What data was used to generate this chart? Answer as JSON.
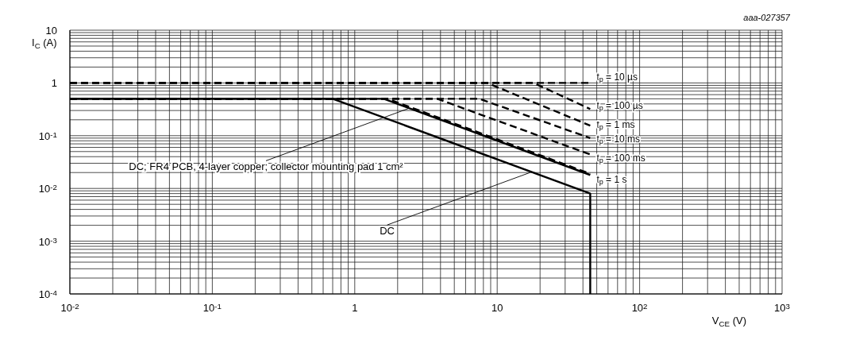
{
  "chart_data": {
    "type": "line",
    "xlabel": "V$_{CE}$ (V)",
    "ylabel": "I$_{C}$ (A)",
    "log": "xy",
    "grid": true,
    "marker": "none",
    "xlim": [
      0.01,
      1000
    ],
    "ylim": [
      0.0001,
      10
    ],
    "xticks": [
      {
        "value": 0.01,
        "label": "10$^{-2}$"
      },
      {
        "value": 0.02,
        "label": null
      },
      {
        "value": 0.03,
        "label": null
      },
      {
        "value": 0.04,
        "label": null
      },
      {
        "value": 0.05,
        "label": null
      },
      {
        "value": 0.06,
        "label": null
      },
      {
        "value": 0.07,
        "label": null
      },
      {
        "value": 0.08,
        "label": null
      },
      {
        "value": 0.09,
        "label": null
      },
      {
        "value": 0.1,
        "label": "10$^{-1}$"
      },
      {
        "value": 0.2,
        "label": null
      },
      {
        "value": 0.3,
        "label": null
      },
      {
        "value": 0.4,
        "label": null
      },
      {
        "value": 0.5,
        "label": null
      },
      {
        "value": 0.6,
        "label": null
      },
      {
        "value": 0.7,
        "label": null
      },
      {
        "value": 0.8,
        "label": null
      },
      {
        "value": 0.9,
        "label": null
      },
      1,
      {
        "value": 2,
        "label": null
      },
      {
        "value": 3,
        "label": null
      },
      {
        "value": 4,
        "label": null
      },
      {
        "value": 5,
        "label": null
      },
      {
        "value": 6,
        "label": null
      },
      {
        "value": 7,
        "label": null
      },
      {
        "value": 8,
        "label": null
      },
      {
        "value": 9,
        "label": null
      },
      10,
      {
        "value": 20,
        "label": null
      },
      {
        "value": 30,
        "label": null
      },
      {
        "value": 40,
        "label": null
      },
      {
        "value": 50,
        "label": null
      },
      {
        "value": 60,
        "label": null
      },
      {
        "value": 70,
        "label": null
      },
      {
        "value": 80,
        "label": null
      },
      {
        "value": 90,
        "label": null
      },
      {
        "value": 100,
        "label": "10$^{2}$"
      },
      {
        "value": 200,
        "label": null
      },
      {
        "value": 300,
        "label": null
      },
      {
        "value": 400,
        "label": null
      },
      {
        "value": 500,
        "label": null
      },
      {
        "value": 600,
        "label": null
      },
      {
        "value": 700,
        "label": null
      },
      {
        "value": 800,
        "label": null
      },
      {
        "value": 900,
        "label": null
      },
      {
        "value": 1000,
        "label": "10$^{3}$"
      }
    ],
    "yticks": [
      {
        "value": 0.0001,
        "label": "10$^{-4}$"
      },
      {
        "value": 0.0002,
        "label": null
      },
      {
        "value": 0.0003,
        "label": null
      },
      {
        "value": 0.0004,
        "label": null
      },
      {
        "value": 0.0005,
        "label": null
      },
      {
        "value": 0.0006,
        "label": null
      },
      {
        "value": 0.0007,
        "label": null
      },
      {
        "value": 0.0008,
        "label": null
      },
      {
        "value": 0.0009,
        "label": null
      },
      {
        "value": 0.001,
        "label": "10$^{-3}$"
      },
      {
        "value": 0.002,
        "label": null
      },
      {
        "value": 0.003,
        "label": null
      },
      {
        "value": 0.004,
        "label": null
      },
      {
        "value": 0.005,
        "label": null
      },
      {
        "value": 0.006,
        "label": null
      },
      {
        "value": 0.007,
        "label": null
      },
      {
        "value": 0.008,
        "label": null
      },
      {
        "value": 0.009,
        "label": null
      },
      {
        "value": 0.01,
        "label": "10$^{-2}$"
      },
      {
        "value": 0.02,
        "label": null
      },
      {
        "value": 0.03,
        "label": null
      },
      {
        "value": 0.04,
        "label": null
      },
      {
        "value": 0.05,
        "label": null
      },
      {
        "value": 0.06,
        "label": null
      },
      {
        "value": 0.07,
        "label": null
      },
      {
        "value": 0.08,
        "label": null
      },
      {
        "value": 0.09,
        "label": null
      },
      {
        "value": 0.1,
        "label": "10$^{-1}$"
      },
      {
        "value": 0.2,
        "label": null
      },
      {
        "value": 0.3,
        "label": null
      },
      {
        "value": 0.4,
        "label": null
      },
      {
        "value": 0.5,
        "label": null
      },
      {
        "value": 0.6,
        "label": null
      },
      {
        "value": 0.7,
        "label": null
      },
      {
        "value": 0.8,
        "label": null
      },
      {
        "value": 0.9,
        "label": null
      },
      1,
      {
        "value": 2,
        "label": null
      },
      {
        "value": 3,
        "label": null
      },
      {
        "value": 4,
        "label": null
      },
      {
        "value": 5,
        "label": null
      },
      {
        "value": 6,
        "label": null
      },
      {
        "value": 7,
        "label": null
      },
      {
        "value": 8,
        "label": null
      },
      {
        "value": 9,
        "label": null
      },
      10
    ],
    "series": [
      {
        "name": "t$_{p}$ = 10 µs",
        "color": "#000000",
        "line_style": "dashed",
        "x": [
          0.01,
          45
        ],
        "values": [
          1,
          1
        ]
      },
      {
        "name": "t$_{p}$ = 100 µs",
        "color": "#000000",
        "line_style": "dashed",
        "x": [
          0.01,
          18,
          45
        ],
        "values": [
          1,
          1,
          0.32
        ]
      },
      {
        "name": "t$_{p}$ = 1 ms",
        "color": "#000000",
        "line_style": "dashed",
        "x": [
          0.01,
          8.5,
          45
        ],
        "values": [
          1,
          1,
          0.155
        ]
      },
      {
        "name": "t$_{p}$ = 10 ms",
        "color": "#000000",
        "line_style": "dashed",
        "x": [
          0.01,
          7.5,
          45
        ],
        "values": [
          0.5,
          0.5,
          0.09
        ]
      },
      {
        "name": "t$_{p}$ = 100 ms",
        "color": "#000000",
        "line_style": "dashed",
        "x": [
          0.01,
          3.8,
          45
        ],
        "values": [
          0.5,
          0.5,
          0.044
        ]
      },
      {
        "name": "t$_{p}$ = 1 s",
        "color": "#000000",
        "line_style": "dashed",
        "x": [
          0.01,
          1.7,
          45
        ],
        "values": [
          0.5,
          0.5,
          0.019
        ]
      },
      {
        "color": "#000000",
        "line_style": "solid",
        "x": [
          0.01,
          1.6,
          45
        ],
        "values": [
          0.5,
          0.5,
          0.018
        ]
      },
      {
        "color": "#000000",
        "line_style": "solid",
        "x": [
          0.01,
          0.7,
          45,
          45
        ],
        "values": [
          0.5,
          0.5,
          0.008,
          0.0001
        ]
      }
    ],
    "annotations": [
      "aaa-027357",
      {
        "text": "DC; FR4 PCB, 4-layer copper; collector mounting pad 1 cm²",
        "x": 2.4,
        "y": 0.33
      },
      {
        "text": "DC",
        "x": 17,
        "y": 0.02
      }
    ]
  }
}
